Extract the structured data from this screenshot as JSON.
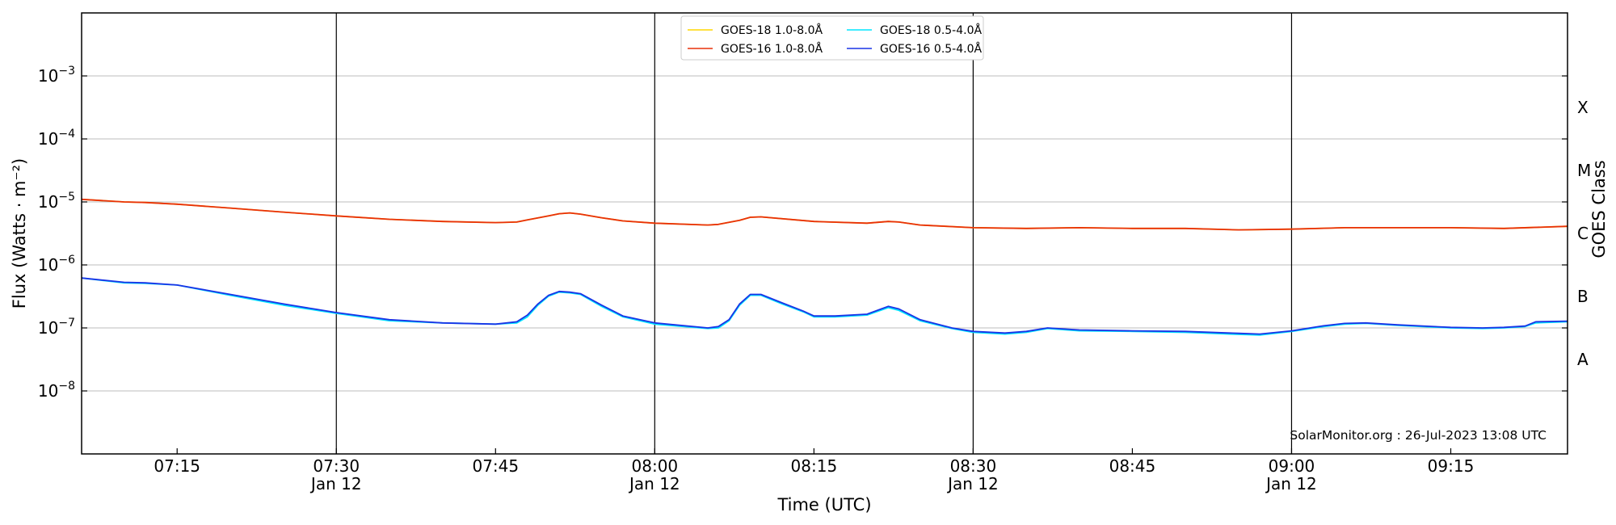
{
  "chart_data": {
    "type": "line",
    "title": "",
    "xlabel": "Time (UTC)",
    "ylabel": "Flux (Watts · m⁻²)",
    "ylabel_right": "GOES Class",
    "yscale": "log",
    "x_unit": "minutes of day (UTC), Jan 12",
    "xlim": [
      "07:06",
      "09:26"
    ],
    "ylim": [
      1e-09,
      0.01
    ],
    "grid": "horizontal at each decade",
    "legend_placement": "top-center",
    "x_ticks": [
      {
        "time": "07:15",
        "label": "07:15",
        "sublabel": ""
      },
      {
        "time": "07:30",
        "label": "07:30",
        "sublabel": "Jan 12"
      },
      {
        "time": "07:45",
        "label": "07:45",
        "sublabel": ""
      },
      {
        "time": "08:00",
        "label": "08:00",
        "sublabel": "Jan 12"
      },
      {
        "time": "08:15",
        "label": "08:15",
        "sublabel": ""
      },
      {
        "time": "08:30",
        "label": "08:30",
        "sublabel": "Jan 12"
      },
      {
        "time": "08:45",
        "label": "08:45",
        "sublabel": ""
      },
      {
        "time": "09:00",
        "label": "09:00",
        "sublabel": "Jan 12"
      },
      {
        "time": "09:15",
        "label": "09:15",
        "sublabel": ""
      }
    ],
    "vlines": [
      "07:30",
      "08:00",
      "08:30",
      "09:00"
    ],
    "y_ticks": [
      {
        "exp": -3,
        "value": 0.001
      },
      {
        "exp": -4,
        "value": 0.0001
      },
      {
        "exp": -5,
        "value": 1e-05
      },
      {
        "exp": -6,
        "value": 1e-06
      },
      {
        "exp": -7,
        "value": 1e-07
      },
      {
        "exp": -8,
        "value": 1e-08
      }
    ],
    "class_labels": [
      {
        "label": "X",
        "value": 0.0003162
      },
      {
        "label": "M",
        "value": 3.162e-05
      },
      {
        "label": "C",
        "value": 3.162e-06
      },
      {
        "label": "B",
        "value": 3.162e-07
      },
      {
        "label": "A",
        "value": 3.162e-08
      }
    ],
    "series": [
      {
        "name": "GOES-18 1.0-8.0Å",
        "color": "#ffd700",
        "x": [
          "07:06",
          "07:10",
          "07:12",
          "07:15",
          "07:20",
          "07:25",
          "07:30",
          "07:35",
          "07:40",
          "07:45",
          "07:47",
          "07:48",
          "07:50",
          "07:51",
          "07:52",
          "07:53",
          "07:55",
          "07:57",
          "08:00",
          "08:05",
          "08:06",
          "08:08",
          "08:09",
          "08:10",
          "08:15",
          "08:20",
          "08:22",
          "08:23",
          "08:25",
          "08:30",
          "08:35",
          "08:40",
          "08:45",
          "08:50",
          "08:55",
          "09:00",
          "09:05",
          "09:10",
          "09:15",
          "09:20",
          "09:26"
        ],
        "values": [
          1.1e-05,
          1e-05,
          9.8e-06,
          9.2e-06,
          8e-06,
          6.9e-06,
          6e-06,
          5.3e-06,
          4.9e-06,
          4.7e-06,
          4.8e-06,
          5.2e-06,
          6e-06,
          6.5e-06,
          6.7e-06,
          6.4e-06,
          5.6e-06,
          5e-06,
          4.6e-06,
          4.3e-06,
          4.4e-06,
          5.1e-06,
          5.7e-06,
          5.8e-06,
          4.9e-06,
          4.6e-06,
          4.9e-06,
          4.8e-06,
          4.3e-06,
          3.9e-06,
          3.8e-06,
          3.9e-06,
          3.8e-06,
          3.8e-06,
          3.6e-06,
          3.7e-06,
          3.9e-06,
          3.9e-06,
          3.9e-06,
          3.8e-06,
          4.1e-06
        ]
      },
      {
        "name": "GOES-16 1.0-8.0Å",
        "color": "#e8300a",
        "x": [
          "07:06",
          "07:10",
          "07:12",
          "07:15",
          "07:20",
          "07:25",
          "07:30",
          "07:35",
          "07:40",
          "07:45",
          "07:47",
          "07:48",
          "07:50",
          "07:51",
          "07:52",
          "07:53",
          "07:55",
          "07:57",
          "08:00",
          "08:05",
          "08:06",
          "08:08",
          "08:09",
          "08:10",
          "08:15",
          "08:20",
          "08:22",
          "08:23",
          "08:25",
          "08:30",
          "08:35",
          "08:40",
          "08:45",
          "08:50",
          "08:55",
          "09:00",
          "09:05",
          "09:10",
          "09:15",
          "09:20",
          "09:26"
        ],
        "values": [
          1.1e-05,
          1e-05,
          9.8e-06,
          9.2e-06,
          8e-06,
          6.9e-06,
          6e-06,
          5.3e-06,
          4.9e-06,
          4.7e-06,
          4.8e-06,
          5.2e-06,
          6e-06,
          6.5e-06,
          6.7e-06,
          6.4e-06,
          5.6e-06,
          5e-06,
          4.6e-06,
          4.3e-06,
          4.4e-06,
          5.1e-06,
          5.7e-06,
          5.8e-06,
          4.9e-06,
          4.6e-06,
          4.9e-06,
          4.8e-06,
          4.3e-06,
          3.9e-06,
          3.8e-06,
          3.9e-06,
          3.8e-06,
          3.8e-06,
          3.6e-06,
          3.7e-06,
          3.9e-06,
          3.9e-06,
          3.9e-06,
          3.8e-06,
          4.1e-06
        ]
      },
      {
        "name": "GOES-18 0.5-4.0Å",
        "color": "#00e5ff",
        "x": [
          "07:06",
          "07:10",
          "07:12",
          "07:15",
          "07:20",
          "07:25",
          "07:30",
          "07:35",
          "07:40",
          "07:45",
          "07:47",
          "07:48",
          "07:49",
          "07:50",
          "07:51",
          "07:52",
          "07:53",
          "07:55",
          "07:57",
          "08:00",
          "08:05",
          "08:06",
          "08:07",
          "08:08",
          "08:09",
          "08:10",
          "08:12",
          "08:14",
          "08:15",
          "08:17",
          "08:20",
          "08:22",
          "08:23",
          "08:25",
          "08:28",
          "08:30",
          "08:33",
          "08:35",
          "08:37",
          "08:40",
          "08:45",
          "08:50",
          "08:55",
          "08:57",
          "09:00",
          "09:03",
          "09:05",
          "09:07",
          "09:10",
          "09:15",
          "09:18",
          "09:20",
          "09:22",
          "09:23",
          "09:26"
        ],
        "values": [
          6.2e-07,
          5.2e-07,
          5.1e-07,
          4.8e-07,
          3.3e-07,
          2.3e-07,
          1.7e-07,
          1.3e-07,
          1.2e-07,
          1.15e-07,
          1.2e-07,
          1.5e-07,
          2.3e-07,
          3.2e-07,
          3.7e-07,
          3.6e-07,
          3.4e-07,
          2.2e-07,
          1.5e-07,
          1.15e-07,
          9.8e-08,
          1e-07,
          1.3e-07,
          2.3e-07,
          3.3e-07,
          3.3e-07,
          2.4e-07,
          1.8e-07,
          1.5e-07,
          1.5e-07,
          1.6e-07,
          2.1e-07,
          1.9e-07,
          1.3e-07,
          9.8e-08,
          8.5e-08,
          8e-08,
          8.5e-08,
          9.8e-08,
          9e-08,
          8.8e-08,
          8.5e-08,
          7.9e-08,
          7.7e-08,
          8.8e-08,
          1.05e-07,
          1.15e-07,
          1.18e-07,
          1.1e-07,
          1e-07,
          9.8e-08,
          1e-07,
          1.05e-07,
          1.2e-07,
          1.25e-07
        ]
      },
      {
        "name": "GOES-16 0.5-4.0Å",
        "color": "#1a33e6",
        "x": [
          "07:06",
          "07:10",
          "07:12",
          "07:15",
          "07:20",
          "07:25",
          "07:30",
          "07:35",
          "07:40",
          "07:45",
          "07:47",
          "07:48",
          "07:49",
          "07:50",
          "07:51",
          "07:52",
          "07:53",
          "07:55",
          "07:57",
          "08:00",
          "08:05",
          "08:06",
          "08:07",
          "08:08",
          "08:09",
          "08:10",
          "08:12",
          "08:14",
          "08:15",
          "08:17",
          "08:20",
          "08:22",
          "08:23",
          "08:25",
          "08:28",
          "08:30",
          "08:33",
          "08:35",
          "08:37",
          "08:40",
          "08:45",
          "08:50",
          "08:55",
          "08:57",
          "09:00",
          "09:03",
          "09:05",
          "09:07",
          "09:10",
          "09:15",
          "09:18",
          "09:20",
          "09:22",
          "09:23",
          "09:26"
        ],
        "values": [
          6.2e-07,
          5.3e-07,
          5.2e-07,
          4.8e-07,
          3.4e-07,
          2.4e-07,
          1.75e-07,
          1.35e-07,
          1.2e-07,
          1.15e-07,
          1.25e-07,
          1.6e-07,
          2.4e-07,
          3.3e-07,
          3.8e-07,
          3.7e-07,
          3.5e-07,
          2.3e-07,
          1.55e-07,
          1.2e-07,
          1e-07,
          1.05e-07,
          1.35e-07,
          2.4e-07,
          3.4e-07,
          3.4e-07,
          2.5e-07,
          1.85e-07,
          1.55e-07,
          1.55e-07,
          1.65e-07,
          2.2e-07,
          2e-07,
          1.35e-07,
          1e-07,
          8.8e-08,
          8.3e-08,
          8.8e-08,
          1e-07,
          9.3e-08,
          9e-08,
          8.8e-08,
          8.2e-08,
          8e-08,
          9e-08,
          1.08e-07,
          1.18e-07,
          1.2e-07,
          1.12e-07,
          1.02e-07,
          1e-07,
          1.02e-07,
          1.07e-07,
          1.25e-07,
          1.28e-07
        ]
      }
    ],
    "annotation": "SolarMonitor.org : 26-Jul-2023 13:08 UTC"
  }
}
